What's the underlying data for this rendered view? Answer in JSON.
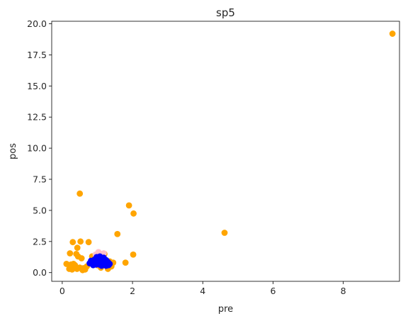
{
  "chart_data": {
    "type": "scatter",
    "title": "sp5",
    "xlabel": "pre",
    "ylabel": "pos",
    "xlim": [
      -0.3,
      9.6
    ],
    "ylim": [
      -0.7,
      20.2
    ],
    "xticks": [
      0,
      2,
      4,
      6,
      8
    ],
    "xtick_labels": [
      "0",
      "2",
      "4",
      "6",
      "8"
    ],
    "yticks": [
      0.0,
      2.5,
      5.0,
      7.5,
      10.0,
      12.5,
      15.0,
      17.5,
      20.0
    ],
    "ytick_labels": [
      "0.0",
      "2.5",
      "5.0",
      "7.5",
      "10.0",
      "12.5",
      "15.0",
      "17.5",
      "20.0"
    ],
    "grid": false,
    "series": [
      {
        "color": "#ffa500",
        "points": [
          [
            9.4,
            19.2
          ],
          [
            4.62,
            3.2
          ],
          [
            0.5,
            6.35
          ],
          [
            1.9,
            5.4
          ],
          [
            2.03,
            4.75
          ],
          [
            1.57,
            3.1
          ],
          [
            0.3,
            2.45
          ],
          [
            0.52,
            2.5
          ],
          [
            0.75,
            2.45
          ],
          [
            0.43,
            2.0
          ],
          [
            0.22,
            1.55
          ],
          [
            0.4,
            1.5
          ],
          [
            0.45,
            1.3
          ],
          [
            0.55,
            1.15
          ],
          [
            2.02,
            1.45
          ],
          [
            1.8,
            0.8
          ],
          [
            0.12,
            0.7
          ],
          [
            0.25,
            0.65
          ],
          [
            0.32,
            0.7
          ],
          [
            0.38,
            0.5
          ],
          [
            0.2,
            0.3
          ],
          [
            0.28,
            0.25
          ],
          [
            0.42,
            0.3
          ],
          [
            0.5,
            0.4
          ],
          [
            0.6,
            0.35
          ],
          [
            0.65,
            0.25
          ],
          [
            0.58,
            0.2
          ],
          [
            0.7,
            0.5
          ],
          [
            0.36,
            0.6
          ],
          [
            1.3,
            0.3
          ],
          [
            1.4,
            0.5
          ],
          [
            1.2,
            1.5
          ],
          [
            0.9,
            1.0
          ],
          [
            1.1,
            0.4
          ],
          [
            1.35,
            0.9
          ],
          [
            1.0,
            0.6
          ],
          [
            1.45,
            0.8
          ],
          [
            0.85,
            1.3
          ]
        ]
      },
      {
        "color": "#ffc0cb",
        "points": [
          [
            1.03,
            1.65
          ],
          [
            1.1,
            1.5
          ],
          [
            0.95,
            1.45
          ],
          [
            1.18,
            1.55
          ]
        ]
      },
      {
        "color": "#0000ff",
        "points": [
          [
            0.78,
            0.75
          ],
          [
            0.85,
            0.85
          ],
          [
            0.9,
            0.7
          ],
          [
            0.95,
            0.9
          ],
          [
            1.0,
            1.0
          ],
          [
            1.0,
            0.75
          ],
          [
            1.05,
            0.65
          ],
          [
            1.08,
            0.95
          ],
          [
            1.1,
            1.1
          ],
          [
            1.12,
            0.8
          ],
          [
            1.15,
            0.7
          ],
          [
            1.18,
            1.2
          ],
          [
            1.2,
            0.9
          ],
          [
            1.22,
            0.65
          ],
          [
            1.25,
            1.0
          ],
          [
            1.28,
            0.75
          ],
          [
            1.3,
            0.85
          ],
          [
            1.32,
            0.6
          ],
          [
            1.35,
            0.7
          ],
          [
            0.92,
            1.05
          ],
          [
            0.98,
            1.25
          ],
          [
            1.03,
            0.85
          ],
          [
            0.88,
            0.6
          ],
          [
            1.15,
            1.05
          ],
          [
            1.25,
            0.55
          ],
          [
            0.82,
            0.95
          ],
          [
            1.07,
            1.3
          ],
          [
            1.2,
            0.6
          ],
          [
            0.96,
            0.65
          ],
          [
            1.12,
            0.55
          ]
        ]
      }
    ]
  }
}
